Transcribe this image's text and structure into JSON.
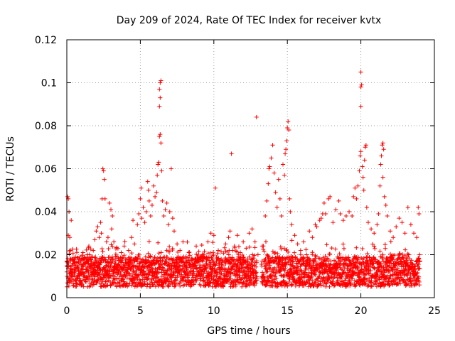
{
  "chart_data": {
    "type": "scatter",
    "title": "Day 209 of 2024, Rate Of TEC Index for receiver kvtx",
    "xlabel": "GPS time / hours",
    "ylabel": "ROTI / TECUs",
    "xlim": [
      0,
      25
    ],
    "ylim": [
      0,
      0.12
    ],
    "x_ticks": [
      "0",
      "5",
      "10",
      "15",
      "20",
      "25"
    ],
    "y_ticks": [
      "0",
      "0.02",
      "0.04",
      "0.06",
      "0.08",
      "0.1",
      "0.12"
    ],
    "x_tick_values": [
      0,
      5,
      10,
      15,
      20,
      25
    ],
    "y_tick_values": [
      0,
      0.02,
      0.04,
      0.06,
      0.08,
      0.1,
      0.12
    ],
    "grid": true,
    "marker": "+",
    "color": "#ff0000",
    "series": [
      {
        "values": [
          [
            0.0,
            0.012
          ],
          [
            0.05,
            0.047
          ],
          [
            0.1,
            0.046
          ],
          [
            0.15,
            0.04
          ],
          [
            0.1,
            0.029
          ],
          [
            0.2,
            0.028
          ],
          [
            0.3,
            0.036
          ],
          [
            0.25,
            0.022
          ],
          [
            0.35,
            0.018
          ],
          [
            0.4,
            0.016
          ],
          [
            0.5,
            0.011
          ],
          [
            0.6,
            0.014
          ],
          [
            0.7,
            0.009
          ],
          [
            0.8,
            0.017
          ],
          [
            0.9,
            0.019
          ],
          [
            1.0,
            0.013
          ],
          [
            1.1,
            0.021
          ],
          [
            1.2,
            0.016
          ],
          [
            1.3,
            0.012
          ],
          [
            1.4,
            0.02
          ],
          [
            1.5,
            0.024
          ],
          [
            1.6,
            0.018
          ],
          [
            1.7,
            0.015
          ],
          [
            1.8,
            0.022
          ],
          [
            1.9,
            0.027
          ],
          [
            2.0,
            0.031
          ],
          [
            2.1,
            0.033
          ],
          [
            2.2,
            0.028
          ],
          [
            2.3,
            0.035
          ],
          [
            2.35,
            0.03
          ],
          [
            2.4,
            0.046
          ],
          [
            2.45,
            0.06
          ],
          [
            2.5,
            0.059
          ],
          [
            2.55,
            0.055
          ],
          [
            2.6,
            0.046
          ],
          [
            2.7,
            0.026
          ],
          [
            2.8,
            0.028
          ],
          [
            2.9,
            0.044
          ],
          [
            3.0,
            0.041
          ],
          [
            3.1,
            0.038
          ],
          [
            3.05,
            0.032
          ],
          [
            3.2,
            0.026
          ],
          [
            3.3,
            0.019
          ],
          [
            3.5,
            0.015
          ],
          [
            3.7,
            0.021
          ],
          [
            3.9,
            0.024
          ],
          [
            4.0,
            0.018
          ],
          [
            4.2,
            0.022
          ],
          [
            4.4,
            0.028
          ],
          [
            4.5,
            0.036
          ],
          [
            4.6,
            0.025
          ],
          [
            4.8,
            0.034
          ],
          [
            4.9,
            0.039
          ],
          [
            5.0,
            0.046
          ],
          [
            5.05,
            0.051
          ],
          [
            5.1,
            0.037
          ],
          [
            5.2,
            0.042
          ],
          [
            5.3,
            0.035
          ],
          [
            5.4,
            0.04
          ],
          [
            5.5,
            0.054
          ],
          [
            5.55,
            0.05
          ],
          [
            5.6,
            0.045
          ],
          [
            5.7,
            0.038
          ],
          [
            5.8,
            0.043
          ],
          [
            5.9,
            0.052
          ],
          [
            6.0,
            0.047
          ],
          [
            6.1,
            0.049
          ],
          [
            6.15,
            0.057
          ],
          [
            6.2,
            0.062
          ],
          [
            6.25,
            0.063
          ],
          [
            6.3,
            0.075
          ],
          [
            6.35,
            0.076
          ],
          [
            6.3,
            0.089
          ],
          [
            6.35,
            0.093
          ],
          [
            6.3,
            0.097
          ],
          [
            6.35,
            0.1
          ],
          [
            6.4,
            0.101
          ],
          [
            6.4,
            0.072
          ],
          [
            6.45,
            0.059
          ],
          [
            6.5,
            0.045
          ],
          [
            6.6,
            0.038
          ],
          [
            6.7,
            0.041
          ],
          [
            6.8,
            0.044
          ],
          [
            6.9,
            0.034
          ],
          [
            7.0,
            0.04
          ],
          [
            7.1,
            0.06
          ],
          [
            7.2,
            0.037
          ],
          [
            7.3,
            0.031
          ],
          [
            7.5,
            0.025
          ],
          [
            7.7,
            0.022
          ],
          [
            7.9,
            0.026
          ],
          [
            8.1,
            0.019
          ],
          [
            8.3,
            0.021
          ],
          [
            8.5,
            0.018
          ],
          [
            8.8,
            0.024
          ],
          [
            9.0,
            0.017
          ],
          [
            9.3,
            0.02
          ],
          [
            9.6,
            0.026
          ],
          [
            9.8,
            0.03
          ],
          [
            10.0,
            0.029
          ],
          [
            10.1,
            0.051
          ],
          [
            10.3,
            0.022
          ],
          [
            10.5,
            0.018
          ],
          [
            10.8,
            0.025
          ],
          [
            11.0,
            0.028
          ],
          [
            11.1,
            0.031
          ],
          [
            11.2,
            0.067
          ],
          [
            11.4,
            0.024
          ],
          [
            11.6,
            0.029
          ],
          [
            11.8,
            0.021
          ],
          [
            12.0,
            0.026
          ],
          [
            12.2,
            0.023
          ],
          [
            12.4,
            0.03
          ],
          [
            12.6,
            0.032
          ],
          [
            12.8,
            0.026
          ],
          [
            12.9,
            0.084
          ],
          [
            13.0,
            0.02
          ],
          [
            13.3,
            0.024
          ],
          [
            13.5,
            0.038
          ],
          [
            13.6,
            0.045
          ],
          [
            13.7,
            0.053
          ],
          [
            13.75,
            0.06
          ],
          [
            13.8,
            0.061
          ],
          [
            13.9,
            0.065
          ],
          [
            14.0,
            0.071
          ],
          [
            14.1,
            0.058
          ],
          [
            14.2,
            0.049
          ],
          [
            14.3,
            0.042
          ],
          [
            14.4,
            0.055
          ],
          [
            14.5,
            0.046
          ],
          [
            14.6,
            0.038
          ],
          [
            14.7,
            0.062
          ],
          [
            14.8,
            0.057
          ],
          [
            14.85,
            0.067
          ],
          [
            14.9,
            0.069
          ],
          [
            14.95,
            0.073
          ],
          [
            15.0,
            0.079
          ],
          [
            15.05,
            0.082
          ],
          [
            15.1,
            0.078
          ],
          [
            15.15,
            0.046
          ],
          [
            15.2,
            0.04
          ],
          [
            15.3,
            0.034
          ],
          [
            15.5,
            0.029
          ],
          [
            15.7,
            0.025
          ],
          [
            15.9,
            0.022
          ],
          [
            16.1,
            0.026
          ],
          [
            16.3,
            0.02
          ],
          [
            16.5,
            0.031
          ],
          [
            16.7,
            0.028
          ],
          [
            16.9,
            0.034
          ],
          [
            17.0,
            0.033
          ],
          [
            17.2,
            0.036
          ],
          [
            17.3,
            0.037
          ],
          [
            17.4,
            0.039
          ],
          [
            17.5,
            0.044
          ],
          [
            17.6,
            0.039
          ],
          [
            17.8,
            0.046
          ],
          [
            17.9,
            0.047
          ],
          [
            18.1,
            0.035
          ],
          [
            18.3,
            0.041
          ],
          [
            18.5,
            0.045
          ],
          [
            18.6,
            0.039
          ],
          [
            18.8,
            0.036
          ],
          [
            19.0,
            0.038
          ],
          [
            19.2,
            0.04
          ],
          [
            19.4,
            0.038
          ],
          [
            19.5,
            0.047
          ],
          [
            19.6,
            0.051
          ],
          [
            19.7,
            0.046
          ],
          [
            19.8,
            0.052
          ],
          [
            19.9,
            0.059
          ],
          [
            19.95,
            0.066
          ],
          [
            20.0,
            0.068
          ],
          [
            20.0,
            0.089
          ],
          [
            20.0,
            0.098
          ],
          [
            20.05,
            0.099
          ],
          [
            20.0,
            0.105
          ],
          [
            20.1,
            0.061
          ],
          [
            20.15,
            0.056
          ],
          [
            20.2,
            0.05
          ],
          [
            20.25,
            0.064
          ],
          [
            20.3,
            0.07
          ],
          [
            20.35,
            0.071
          ],
          [
            20.4,
            0.042
          ],
          [
            20.5,
            0.035
          ],
          [
            20.7,
            0.032
          ],
          [
            20.9,
            0.03
          ],
          [
            21.1,
            0.034
          ],
          [
            21.2,
            0.039
          ],
          [
            21.3,
            0.052
          ],
          [
            21.35,
            0.062
          ],
          [
            21.4,
            0.066
          ],
          [
            21.45,
            0.071
          ],
          [
            21.5,
            0.072
          ],
          [
            21.55,
            0.069
          ],
          [
            21.5,
            0.056
          ],
          [
            21.6,
            0.047
          ],
          [
            21.7,
            0.043
          ],
          [
            21.8,
            0.038
          ],
          [
            22.0,
            0.031
          ],
          [
            22.2,
            0.028
          ],
          [
            22.4,
            0.033
          ],
          [
            22.6,
            0.037
          ],
          [
            22.8,
            0.035
          ],
          [
            23.0,
            0.03
          ],
          [
            23.2,
            0.042
          ],
          [
            23.4,
            0.034
          ],
          [
            23.6,
            0.03
          ],
          [
            23.8,
            0.028
          ],
          [
            23.9,
            0.042
          ],
          [
            23.95,
            0.039
          ],
          [
            24.0,
            0.02
          ]
        ]
      }
    ]
  }
}
